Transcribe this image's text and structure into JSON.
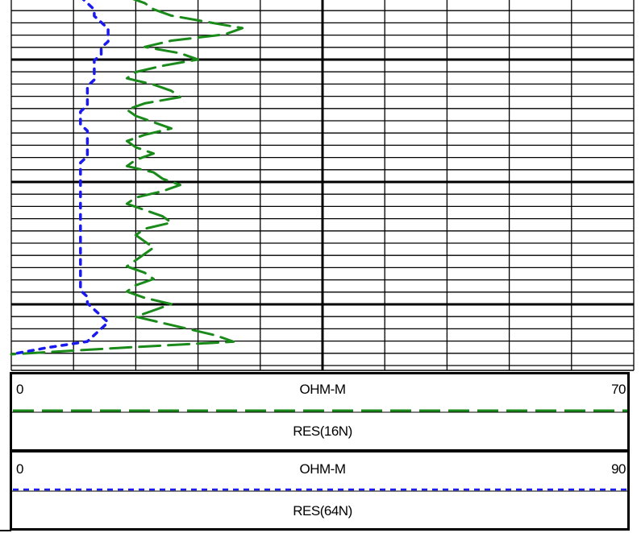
{
  "chart_data": {
    "type": "line",
    "orientation": "vertical-depth-log",
    "grid": true,
    "tracks": [
      {
        "curve": "RES(16N)",
        "unit": "OHM-M",
        "min_label": "0",
        "max_label": "70",
        "range": [
          0,
          70
        ],
        "color": "#1a8a1a",
        "line_style": "long-dash",
        "values": [
          13,
          15,
          16,
          18,
          22,
          26,
          24,
          18,
          15,
          19,
          21,
          17,
          14,
          13,
          16,
          18,
          19,
          15,
          13,
          14,
          16,
          18,
          15,
          13,
          14,
          16,
          14,
          13,
          16,
          17,
          19,
          17,
          14,
          13,
          15,
          17,
          18,
          15,
          14,
          15,
          16,
          15,
          14,
          13,
          15,
          16,
          14,
          13,
          15,
          18,
          16,
          14,
          17,
          20,
          23,
          25,
          12,
          0
        ]
      },
      {
        "curve": "RES(64N)",
        "unit": "OHM-M",
        "min_label": "0",
        "max_label": "90",
        "range": [
          0,
          90
        ],
        "color": "#1a1aee",
        "line_style": "short-dash",
        "values": [
          10,
          11,
          12,
          12,
          13,
          14,
          14,
          14,
          13,
          13,
          12,
          12,
          12,
          12,
          11,
          11,
          11,
          11,
          10,
          10,
          10,
          11,
          11,
          11,
          11,
          11,
          10,
          10,
          10,
          10,
          10,
          10,
          10,
          10,
          10,
          10,
          10,
          10,
          10,
          10,
          10,
          10,
          10,
          10,
          10,
          10,
          10,
          11,
          11,
          12,
          13,
          14,
          13,
          12,
          11,
          5,
          0
        ]
      }
    ]
  }
}
